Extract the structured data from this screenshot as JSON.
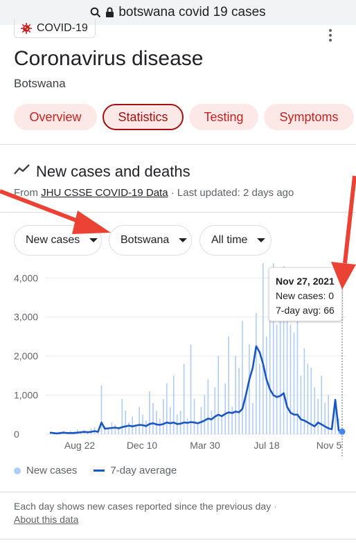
{
  "browser": {
    "url_text": "botswana covid 19 cases"
  },
  "card": {
    "badge_label": "COVID-19",
    "title": "Coronavirus disease",
    "subtitle": "Botswana",
    "tabs": [
      {
        "label": "Overview",
        "active": false
      },
      {
        "label": "Statistics",
        "active": true
      },
      {
        "label": "Testing",
        "active": false
      },
      {
        "label": "Symptoms",
        "active": false
      }
    ]
  },
  "section": {
    "title": "New cases and deaths",
    "source_prefix": "From ",
    "source_link": "JHU CSSE COVID-19 Data",
    "source_suffix": " · Last updated: 2 days ago"
  },
  "filters": {
    "metric": "New cases",
    "location": "Botswana",
    "range": "All time"
  },
  "tooltip": {
    "date": "Nov 27, 2021",
    "new_cases": "New cases: 0",
    "avg": "7-day avg: 66"
  },
  "legend": {
    "new_cases": "New cases",
    "avg": "7-day average"
  },
  "footnote": {
    "text": "Each day shows new cases reported since the previous day",
    "link": "About this data"
  },
  "colors": {
    "bar": "#aecbfa",
    "line": "#1a56c2",
    "tab_bg": "#fce8e6",
    "tab_text": "#c5221f",
    "arrow": "#ea4335"
  },
  "chart_data": {
    "type": "bar",
    "y_ticks": [
      "0",
      "1,000",
      "2,000",
      "3,000",
      "4,000"
    ],
    "x_ticks": [
      "Aug 22",
      "Dec 10",
      "Mar 30",
      "Jul 18",
      "Nov 5"
    ],
    "ylim": [
      0,
      4200
    ],
    "grid": true,
    "series": [
      {
        "name": "New cases",
        "type": "bar",
        "values": [
          20,
          40,
          30,
          60,
          80,
          50,
          90,
          70,
          120,
          60,
          100,
          80,
          150,
          180,
          90,
          1250,
          200,
          150,
          300,
          250,
          180,
          900,
          600,
          300,
          450,
          250,
          700,
          500,
          350,
          1100,
          800,
          600,
          400,
          900,
          1300,
          700,
          1500,
          500,
          600,
          1800,
          400,
          2300,
          900,
          300,
          700,
          1000,
          1400,
          600,
          1200,
          2000,
          500,
          1300,
          2500,
          700,
          2000,
          1700,
          2900,
          1000,
          2300,
          800,
          3100,
          1800,
          4500,
          2500,
          3500,
          4500,
          2800,
          3200,
          4300,
          3500,
          2800,
          2600,
          3000,
          1500,
          2200,
          1800,
          1700,
          1200,
          900,
          1500,
          800,
          1000,
          300,
          900,
          400,
          0
        ]
      },
      {
        "name": "7-day average",
        "type": "line",
        "values": [
          40,
          30,
          20,
          30,
          40,
          30,
          30,
          30,
          40,
          50,
          60,
          50,
          60,
          80,
          60,
          300,
          140,
          150,
          160,
          170,
          150,
          180,
          200,
          220,
          200,
          220,
          240,
          230,
          210,
          260,
          280,
          250,
          240,
          260,
          300,
          280,
          300,
          260,
          270,
          300,
          290,
          310,
          300,
          280,
          310,
          350,
          400,
          380,
          450,
          500,
          460,
          520,
          560,
          540,
          580,
          560,
          650,
          1000,
          1400,
          1700,
          2250,
          2100,
          1800,
          1400,
          1150,
          1000,
          950,
          980,
          1050,
          700,
          550,
          500,
          500,
          380,
          350,
          300,
          250,
          200,
          300,
          250,
          200,
          150,
          130,
          880,
          100,
          66
        ]
      }
    ]
  }
}
